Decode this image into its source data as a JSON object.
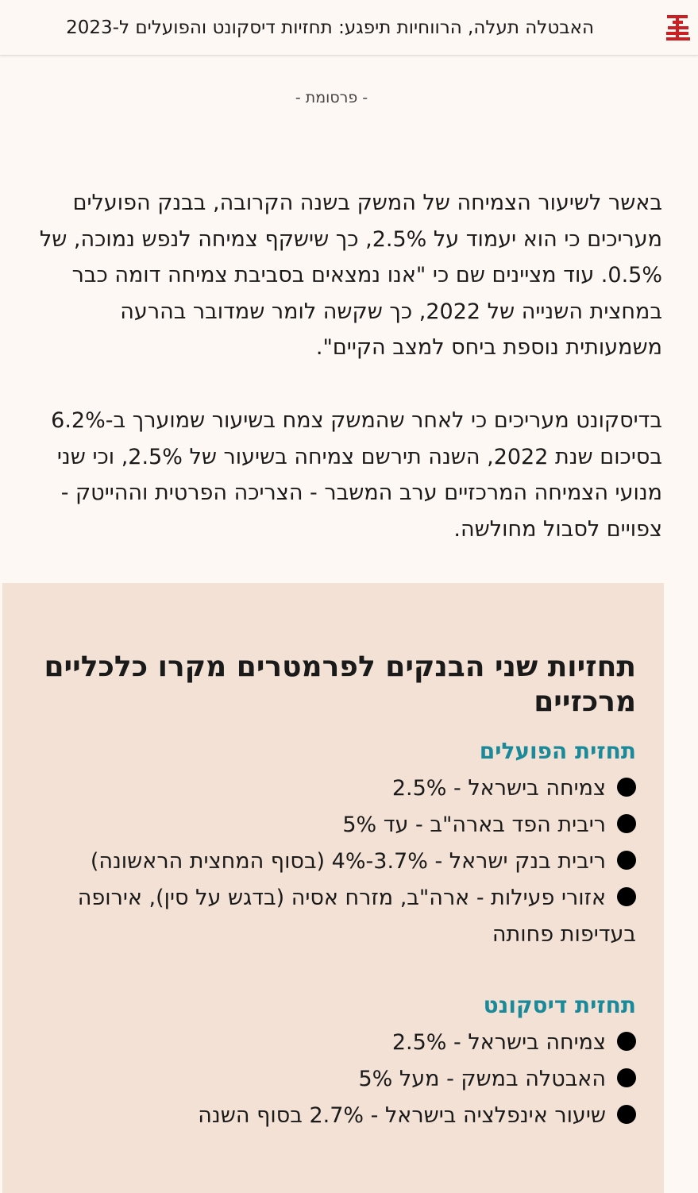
{
  "header": {
    "title": "האבטלה תעלה, הרווחיות תיפגע: תחזיות דיסקונט והפועלים ל-2023",
    "logo_icon": "site-logo-icon",
    "logo_color": "#cc1f24"
  },
  "ad_label": "- פרסומת -",
  "article": {
    "paragraphs": [
      "באשר לשיעור הצמיחה של המשק בשנה הקרובה, בבנק הפועלים מעריכים כי הוא יעמוד על 2.5%, כך שישקף צמיחה לנפש נמוכה, של 0.5%. עוד מציינים שם כי \"אנו נמצאים בסביבת צמיחה דומה כבר במחצית השנייה של 2022, כך שקשה לומר שמדובר בהרעה משמעותית נוספת ביחס למצב הקיים\".",
      "בדיסקונט מעריכים כי לאחר שהמשק צמח בשיעור שמוערך ב-6.2% בסיכום שנת 2022, השנה תירשם צמיחה בשיעור של 2.5%, וכי שני מנועי הצמיחה המרכזיים ערב המשבר - הצריכה הפרטית וההייטק - צפויים לסבול מחולשה."
    ]
  },
  "box": {
    "background": "#f2e1d4",
    "title": "תחזיות שני הבנקים לפרמטרים מקרו כלכליים מרכזיים",
    "sections": [
      {
        "heading": "תחזית הפועלים",
        "heading_color": "#1a8a9a",
        "items": [
          "צמיחה בישראל - 2.5%",
          "ריבית הפד בארה\"ב - עד 5%",
          "ריבית בנק ישראל - 3.7%-4%  (בסוף המחצית הראשונה)",
          "אזורי פעילות - ארה\"ב, מזרח אסיה (בדגש על סין), אירופה בעדיפות פחותה"
        ]
      },
      {
        "heading": "תחזית דיסקונט",
        "heading_color": "#1a8a9a",
        "items": [
          "צמיחה בישראל - 2.5%",
          "האבטלה במשק - מעל 5%",
          "שיעור אינפלציה בישראל - 2.7% בסוף השנה"
        ]
      }
    ]
  }
}
